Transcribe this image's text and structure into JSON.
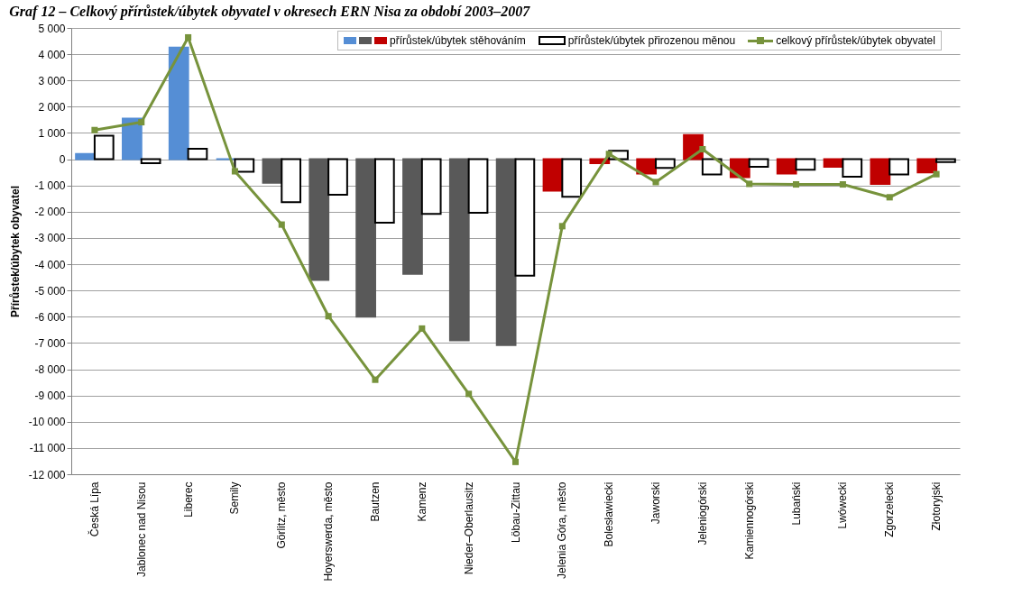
{
  "chart_data": {
    "type": "bar",
    "title": "Graf 12 – Celkový přírůstek/úbytek obyvatel v okresech ERN Nisa za období 2003–2007",
    "ylabel": "Přírůstek/úbytek obyvatel",
    "categories": [
      "Česká Lípa",
      "Jablonec nad Nisou",
      "Liberec",
      "Semily",
      "Görlitz, město",
      "Hoyerswerda, město",
      "Bautzen",
      "Kamenz",
      "Nieder–Oberlausitz",
      "Löbau-Zittau",
      "Jelenia Góra, město",
      "Bolesławiecki",
      "Jaworski",
      "Jeleniogórski",
      "Kamiennogórski",
      "Lubański",
      "Lwówecki",
      "Zgorzelecki",
      "Złotoryjski"
    ],
    "series": [
      {
        "name": "přírůstek/úbytek stěhováním",
        "colors": [
          "#558ed5",
          "#558ed5",
          "#558ed5",
          "#558ed5",
          "#595959",
          "#595959",
          "#595959",
          "#595959",
          "#595959",
          "#595959",
          "#c00000",
          "#c00000",
          "#c00000",
          "#c00000",
          "#c00000",
          "#c00000",
          "#c00000",
          "#c00000",
          "#c00000"
        ],
        "values": [
          200,
          1550,
          4250,
          0,
          -900,
          -4600,
          -6000,
          -4370,
          -6900,
          -7080,
          -1200,
          -150,
          -550,
          920,
          -680,
          -550,
          -290,
          -940,
          -500
        ]
      },
      {
        "name": "přírůstek/úbytek přirozenou měnou",
        "color": "#ffffff",
        "values": [
          900,
          -150,
          400,
          -480,
          -1640,
          -1350,
          -2420,
          -2080,
          -2040,
          -4440,
          -1430,
          320,
          -330,
          -580,
          -290,
          -400,
          -670,
          -580,
          -110
        ]
      },
      {
        "name": "celkový přírůstek/úbytek obyvatel",
        "type": "line",
        "color": "#77933c",
        "values": [
          1110,
          1410,
          4640,
          -460,
          -2490,
          -5980,
          -8400,
          -6450,
          -8940,
          -11530,
          -2550,
          200,
          -870,
          380,
          -940,
          -960,
          -960,
          -1450,
          -570
        ]
      }
    ],
    "ylim": [
      -12000,
      5000
    ],
    "yticks": [
      {
        "value": -12000,
        "label": "-12 000"
      },
      {
        "value": -11000,
        "label": "-11 000"
      },
      {
        "value": -10000,
        "label": "-10 000"
      },
      {
        "value": -9000,
        "label": "-9 000"
      },
      {
        "value": -8000,
        "label": "-8 000"
      },
      {
        "value": -7000,
        "label": "-7 000"
      },
      {
        "value": -6000,
        "label": "-6 000"
      },
      {
        "value": -5000,
        "label": "-5 000"
      },
      {
        "value": -4000,
        "label": "-4 000"
      },
      {
        "value": -3000,
        "label": "-3 000"
      },
      {
        "value": -2000,
        "label": "-2 000"
      },
      {
        "value": -1000,
        "label": "-1 000"
      },
      0,
      {
        "value": 1000,
        "label": "1 000"
      },
      {
        "value": 2000,
        "label": "2 000"
      },
      {
        "value": 3000,
        "label": "3 000"
      },
      {
        "value": 4000,
        "label": "4 000"
      },
      {
        "value": 5000,
        "label": "5 000"
      }
    ],
    "grid": "y",
    "legend": "top right",
    "marker": "square",
    "line_style": "solid"
  }
}
